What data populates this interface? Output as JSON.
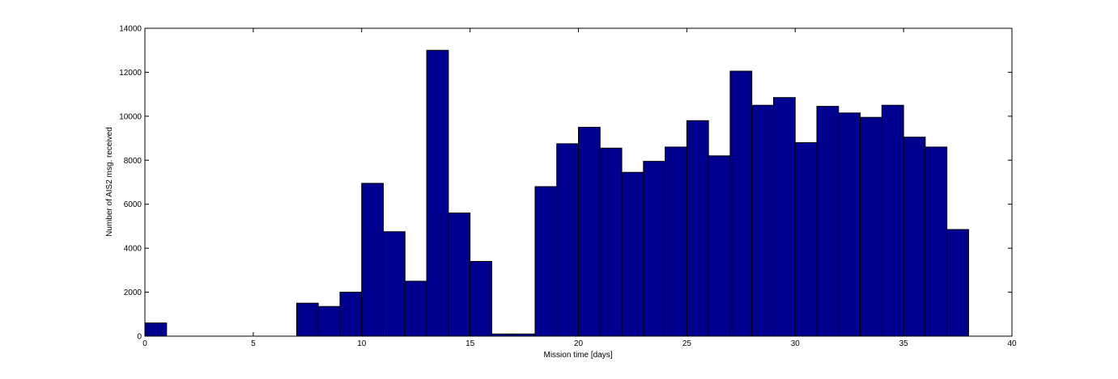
{
  "chart_data": {
    "type": "histogram",
    "x_label": "Mission time [days]",
    "y_label": "Number of AIS2 msg. received",
    "bins": [
      0,
      1,
      2,
      3,
      4,
      5,
      6,
      7,
      8,
      9,
      10,
      11,
      12,
      13,
      14,
      15,
      16,
      17,
      18,
      19,
      20,
      21,
      22,
      23,
      24,
      25,
      26,
      27,
      28,
      29,
      30,
      31,
      32,
      33,
      34,
      35,
      36,
      37,
      38
    ],
    "counts": [
      600,
      0,
      0,
      0,
      0,
      0,
      0,
      1500,
      1350,
      2000,
      6950,
      4750,
      2500,
      13000,
      5600,
      3400,
      100,
      100,
      6800,
      8750,
      9500,
      8550,
      7450,
      7950,
      8600,
      9800,
      8200,
      12050,
      10500,
      10850,
      8800,
      10450,
      10150,
      9950,
      10500,
      9050,
      8600,
      4850
    ],
    "color": "#00008f",
    "xlim": [
      0,
      40
    ],
    "xticks": [
      0,
      5,
      10,
      15,
      20,
      25,
      30,
      35,
      40
    ],
    "ylim": [
      0,
      14000
    ],
    "yticks": [
      0,
      2000,
      4000,
      6000,
      8000,
      10000,
      12000,
      14000
    ]
  }
}
